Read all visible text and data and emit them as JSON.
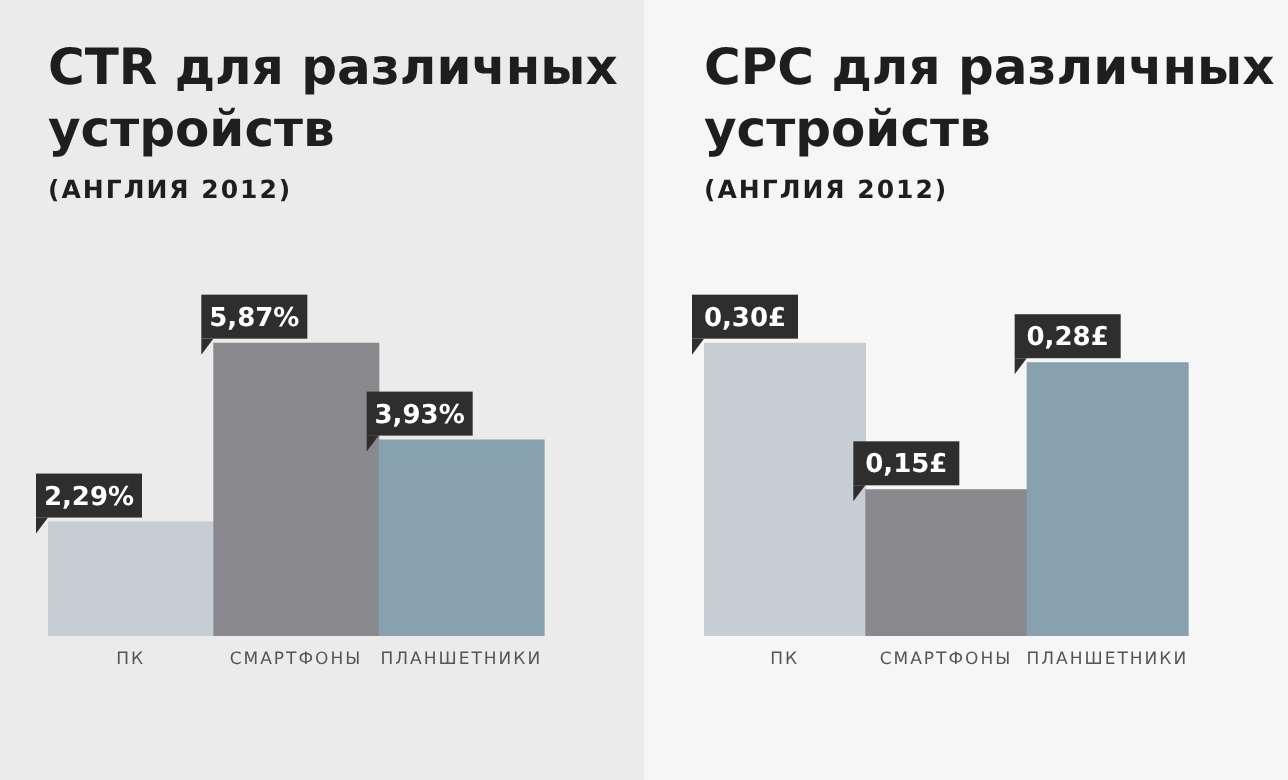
{
  "chart_data": [
    {
      "type": "bar",
      "title": "CTR для различных устройств",
      "subtitle": "(АНГЛИЯ 2012)",
      "categories": [
        "ПК",
        "СМАРТФОНЫ",
        "ПЛАНШЕТНИКИ"
      ],
      "values": [
        2.29,
        5.87,
        3.93
      ],
      "colors": [
        "#c6ced4",
        "#89898d",
        "#87a1ae"
      ],
      "value_labels": [
        "2,29%",
        "5,87%",
        "3,93%"
      ]
    },
    {
      "type": "bar",
      "title": "CPC для различных устройств",
      "subtitle": "(АНГЛИЯ 2012)",
      "categories": [
        "ПК",
        "СМАРТФОНЫ",
        "ПЛАНШЕТНИКИ"
      ],
      "values": [
        0.3,
        0.15,
        0.28
      ],
      "colors": [
        "#c6ced4",
        "#89898d",
        "#87a1ae"
      ],
      "value_labels": [
        "0,30£",
        "0,15£",
        "0,28£"
      ]
    }
  ]
}
